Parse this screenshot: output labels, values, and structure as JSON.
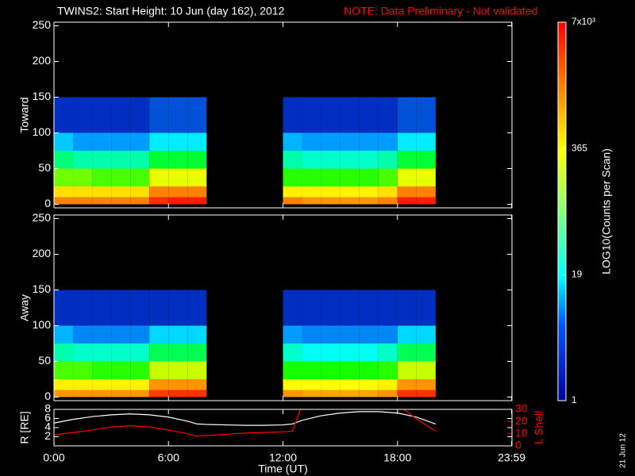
{
  "chart_data": [
    {
      "type": "heatmap",
      "title": "TWINS2: Start Height: 10 Jun (day 162), 2012",
      "note": "NOTE: Data Preliminary - Not validated",
      "ylabel": "Toward",
      "ylim": [
        -5,
        255
      ],
      "yticks": [
        0,
        50,
        100,
        150,
        200,
        250
      ],
      "xlim": [
        0,
        24
      ],
      "x_edges": [
        0,
        1,
        2,
        3,
        4,
        5,
        6,
        7,
        8,
        9,
        10,
        11,
        12,
        13,
        14,
        15,
        16,
        17,
        18,
        19,
        20,
        21,
        22,
        23,
        24
      ],
      "y_edges": [
        0,
        10,
        25,
        50,
        75,
        100,
        150
      ],
      "z": [
        [
          1500,
          1500,
          1500,
          1500,
          1500,
          4000,
          5000,
          5000,
          null,
          null,
          null,
          null,
          1500,
          1200,
          1200,
          1200,
          1200,
          1500,
          5000,
          5000,
          null,
          null,
          null,
          null
        ],
        [
          500,
          500,
          500,
          500,
          500,
          1500,
          1500,
          1500,
          null,
          null,
          null,
          null,
          400,
          400,
          400,
          400,
          400,
          500,
          1500,
          1500,
          null,
          null,
          null,
          null
        ],
        [
          150,
          150,
          120,
          120,
          120,
          300,
          300,
          300,
          null,
          null,
          null,
          null,
          100,
          100,
          100,
          100,
          100,
          120,
          300,
          300,
          null,
          null,
          null,
          null
        ],
        [
          40,
          30,
          30,
          30,
          30,
          60,
          60,
          60,
          null,
          null,
          null,
          null,
          30,
          25,
          25,
          25,
          25,
          30,
          60,
          60,
          null,
          null,
          null,
          null
        ],
        [
          10,
          6,
          6,
          6,
          6,
          15,
          15,
          15,
          null,
          null,
          null,
          null,
          8,
          6,
          6,
          6,
          6,
          6,
          15,
          15,
          null,
          null,
          null,
          null
        ],
        [
          2,
          2,
          2,
          2,
          2,
          3,
          3,
          3,
          null,
          null,
          null,
          null,
          2,
          2,
          2,
          2,
          2,
          2,
          3,
          3,
          null,
          null,
          null,
          null
        ]
      ],
      "colorbar": {
        "label": "LOG10(Counts per Scan)",
        "log": true,
        "lim": [
          1,
          7000
        ],
        "ticks": [
          1,
          19,
          365,
          {
            "value": 7000,
            "label": "7x10³"
          }
        ]
      }
    },
    {
      "type": "heatmap",
      "ylabel": "Away",
      "ylim": [
        -5,
        255
      ],
      "yticks": [
        0,
        50,
        100,
        150,
        200,
        250
      ],
      "xlim": [
        0,
        24
      ],
      "x_edges": [
        0,
        1,
        2,
        3,
        4,
        5,
        6,
        7,
        8,
        9,
        10,
        11,
        12,
        13,
        14,
        15,
        16,
        17,
        18,
        19,
        20,
        21,
        22,
        23,
        24
      ],
      "y_edges": [
        0,
        10,
        25,
        50,
        75,
        100,
        150
      ],
      "z": [
        [
          1200,
          1200,
          1200,
          1200,
          1200,
          3500,
          4000,
          4000,
          null,
          null,
          null,
          null,
          1200,
          1000,
          1000,
          1000,
          1000,
          1200,
          4000,
          4000,
          null,
          null,
          null,
          null
        ],
        [
          400,
          400,
          400,
          400,
          400,
          1200,
          1200,
          1200,
          null,
          null,
          null,
          null,
          350,
          350,
          350,
          350,
          350,
          400,
          1200,
          1200,
          null,
          null,
          null,
          null
        ],
        [
          120,
          120,
          100,
          100,
          100,
          250,
          250,
          250,
          null,
          null,
          null,
          null,
          90,
          90,
          90,
          90,
          90,
          100,
          250,
          250,
          null,
          null,
          null,
          null
        ],
        [
          30,
          25,
          25,
          25,
          25,
          50,
          50,
          50,
          null,
          null,
          null,
          null,
          25,
          20,
          20,
          20,
          20,
          25,
          50,
          50,
          null,
          null,
          null,
          null
        ],
        [
          8,
          5,
          5,
          5,
          5,
          12,
          12,
          12,
          null,
          null,
          null,
          null,
          6,
          5,
          5,
          5,
          5,
          5,
          12,
          12,
          null,
          null,
          null,
          null
        ],
        [
          2,
          2,
          2,
          2,
          2,
          2,
          2,
          2,
          null,
          null,
          null,
          null,
          2,
          2,
          2,
          2,
          2,
          2,
          2,
          2,
          null,
          null,
          null,
          null
        ]
      ]
    },
    {
      "type": "line",
      "ylabel": "R [RE]",
      "y2label": "L Shell",
      "xlabel": "Time (UT)",
      "date_stamp": "21 Jun 12",
      "xlim": [
        0,
        24
      ],
      "xticks": [
        {
          "value": 0,
          "label": "0:00"
        },
        {
          "value": 6,
          "label": "6:00"
        },
        {
          "value": 12,
          "label": "12:00"
        },
        {
          "value": 18,
          "label": "18:00"
        },
        {
          "value": 23.9833,
          "label": "23:59"
        }
      ],
      "ylim": [
        0,
        8
      ],
      "yticks": [
        2,
        4,
        6,
        8
      ],
      "y2lim": [
        0,
        30
      ],
      "y2ticks": [
        0,
        10,
        20,
        30
      ],
      "x": [
        0,
        1,
        2,
        3,
        4,
        5,
        6,
        7,
        7.5,
        8,
        9,
        10,
        11,
        12,
        12.5,
        13,
        14,
        15,
        16,
        17,
        18,
        19,
        20
      ],
      "series": [
        {
          "color": "#ffffff",
          "values": [
            5,
            5.8,
            6.4,
            6.8,
            7,
            6.8,
            6.3,
            5.4,
            4.8,
            4.7,
            4.6,
            4.5,
            4.5,
            4.6,
            4.8,
            5.6,
            6.6,
            7.2,
            7.5,
            7.5,
            7.2,
            6.3,
            4.8
          ]
        },
        {
          "color": "#ff0000",
          "axis": "y2",
          "values": [
            9,
            11,
            13,
            15.5,
            16.5,
            15.5,
            13,
            10,
            8,
            8.5,
            9.5,
            10.5,
            11,
            11.5,
            12,
            34,
            null,
            null,
            null,
            null,
            34,
            22,
            12
          ]
        }
      ]
    }
  ]
}
